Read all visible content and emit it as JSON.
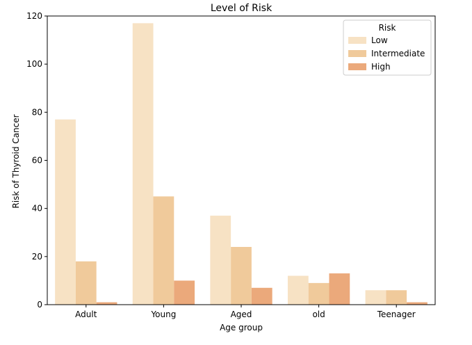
{
  "chart_data": {
    "type": "bar",
    "title": "Level of Risk",
    "xlabel": "Age group",
    "ylabel": "Risk of Thyroid Cancer",
    "categories": [
      "Adult",
      "Young",
      "Aged",
      "old",
      "Teenager"
    ],
    "series": [
      {
        "name": "Low",
        "color": "#f7e2c4",
        "values": [
          77,
          117,
          37,
          12,
          6
        ]
      },
      {
        "name": "Intermediate",
        "color": "#f0ca9b",
        "values": [
          18,
          45,
          24,
          9,
          6
        ]
      },
      {
        "name": "High",
        "color": "#eba97b",
        "values": [
          1,
          10,
          7,
          13,
          1
        ]
      }
    ],
    "ylim": [
      0,
      120
    ],
    "yticks": [
      "0",
      "20",
      "40",
      "60",
      "80",
      "100",
      "120"
    ],
    "grid": false,
    "legend": {
      "title": "Risk",
      "position": "top-right"
    }
  }
}
